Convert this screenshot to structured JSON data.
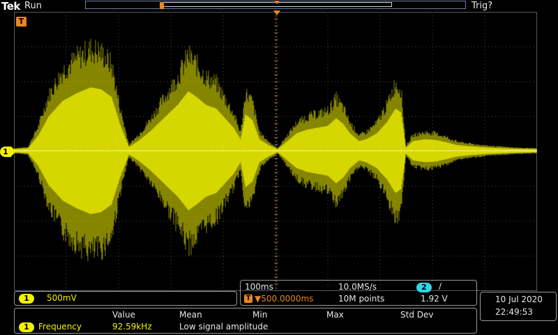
{
  "header": {
    "brand": "Tek",
    "acq_state": "Run",
    "trigger_status": "Trig?"
  },
  "channel1": {
    "marker": "1",
    "scale": "500mV",
    "color": "#f2f200"
  },
  "trigger_marker": "T",
  "timebase": {
    "time_per_div": "100ms",
    "sample_rate": "10.0MS/s",
    "trigger_delay_icon": "T",
    "trigger_delay": "▼500.0000ms",
    "record_length": "10M points",
    "trigger_channel": "2",
    "trigger_slope_icon": "rising-edge-icon",
    "trigger_slope": "∕",
    "trigger_level": "1.92 V"
  },
  "datetime": {
    "date": "10 Jul  2020",
    "time": "22:49:53"
  },
  "measurements": {
    "headers": [
      "Value",
      "Mean",
      "Min",
      "Max",
      "Std Dev"
    ],
    "rows": [
      {
        "channel": "1",
        "name": "Frequency",
        "value": "92.59kHz",
        "note": "Low signal amplitude"
      }
    ]
  },
  "colors": {
    "trace": "#f2f200",
    "trigger": "#e8871e",
    "grid": "#4a4a4a",
    "panel_border": "#9a9a9a"
  }
}
